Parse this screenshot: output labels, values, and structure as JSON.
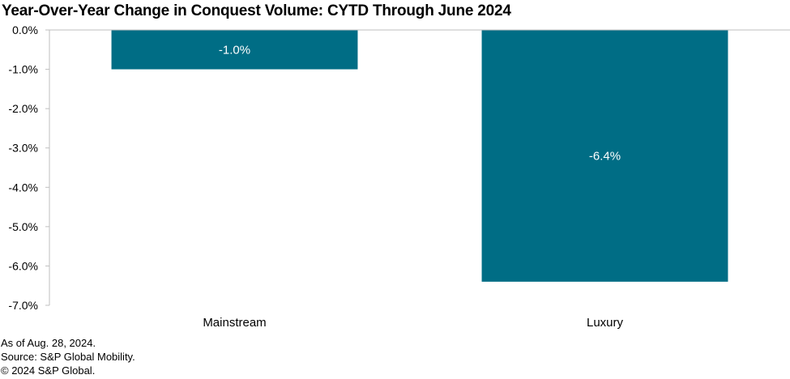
{
  "title": "Year-Over-Year Change in Conquest Volume: CYTD Through June 2024",
  "notes": [
    "As of Aug. 28, 2024.",
    "Source: S&P Global Mobility.",
    "© 2024 S&P Global."
  ],
  "colors": {
    "bar": "#006D85",
    "axis": "#bfbfbf",
    "label_text": "#ffffff"
  },
  "chart_data": {
    "type": "bar",
    "title": "Year-Over-Year Change in Conquest Volume: CYTD Through June 2024",
    "categories": [
      "Mainstream",
      "Luxury"
    ],
    "values": [
      -1.0,
      -6.4
    ],
    "data_labels": [
      "-1.0%",
      "-6.4%"
    ],
    "ylim": [
      -7.0,
      0.0
    ],
    "yticks": [
      0.0,
      -1.0,
      -2.0,
      -3.0,
      -4.0,
      -5.0,
      -6.0,
      -7.0
    ],
    "ytick_labels": [
      "0.0%",
      "-1.0%",
      "-2.0%",
      "-3.0%",
      "-4.0%",
      "-5.0%",
      "-6.0%",
      "-7.0%"
    ],
    "xlabel": "",
    "ylabel": "",
    "grid": false,
    "legend": "none"
  }
}
